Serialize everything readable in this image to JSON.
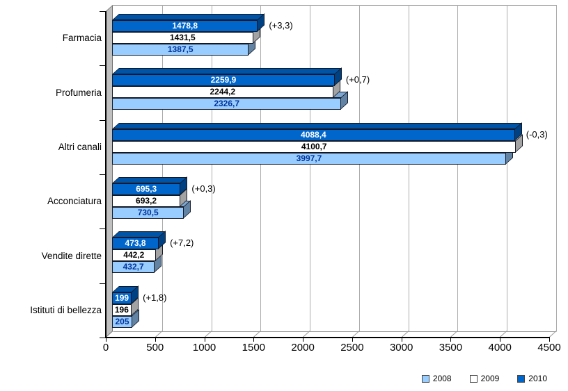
{
  "chart_data": {
    "type": "bar",
    "orientation": "horizontal",
    "style": "3d",
    "categories": [
      "Farmacia",
      "Profumeria",
      "Altri canali",
      "Acconciatura",
      "Vendite dirette",
      "Istituti di bellezza"
    ],
    "series": [
      {
        "name": "2008",
        "color": "#99CCFF",
        "label_color": "#003399",
        "values": [
          1387.5,
          2326.7,
          3997.7,
          730.5,
          432.7,
          205
        ],
        "labels": [
          "1387,5",
          "2326,7",
          "3997,7",
          "730,5",
          "432,7",
          "205"
        ]
      },
      {
        "name": "2009",
        "color": "#FFFFFF",
        "label_color": "#000000",
        "values": [
          1431.5,
          2244.2,
          4100.7,
          693.2,
          442.2,
          196
        ],
        "labels": [
          "1431,5",
          "2244,2",
          "4100,7",
          "693,2",
          "442,2",
          "196"
        ]
      },
      {
        "name": "2010",
        "color": "#0066CC",
        "label_color": "#FFFFFF",
        "values": [
          1478.8,
          2259.9,
          4088.4,
          695.3,
          473.8,
          199
        ],
        "labels": [
          "1478,8",
          "2259,9",
          "4088,4",
          "695,3",
          "473,8",
          "199"
        ]
      }
    ],
    "annotations": [
      "(+3,3)",
      "(+0,7)",
      "(-0,3)",
      "(+0,3)",
      "(+7,2)",
      "(+1,8)"
    ],
    "xlim": [
      0,
      4500
    ],
    "xtick_step": 500,
    "xtick_labels": [
      "0",
      "500",
      "1000",
      "1500",
      "2000",
      "2500",
      "3000",
      "3500",
      "4000",
      "4500"
    ],
    "grid": true,
    "legend_position": "bottom-right",
    "colors": {
      "gridline": "#ABABAB",
      "wall": "#C0C0C0",
      "wall_edge": "#808080",
      "axis": "#000000",
      "bar_border": "#121825",
      "floor_line": "#999999"
    }
  }
}
